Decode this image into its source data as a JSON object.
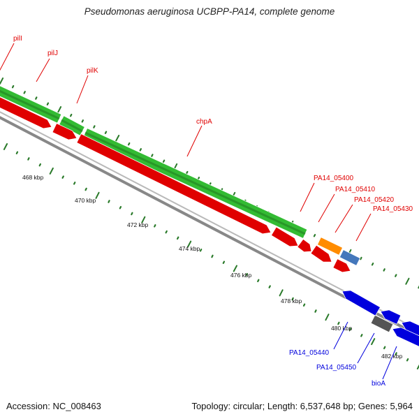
{
  "title": "Pseudomonas aeruginosa UCBPP-PA14, complete genome",
  "footer": {
    "accession": "Accession: NC_008463",
    "summary": "Topology: circular; Length: 6,537,648 bp; Genes: 5,964"
  },
  "colors": {
    "top_gene": "#e00000",
    "bottom_gene": "#0000dd",
    "cds_fill": "#33bb33",
    "backbone": "#888888",
    "tick": "#2a7a2a",
    "tick_label": "#111111"
  },
  "ticks": [
    "468 kbp",
    "470 kbp",
    "472 kbp",
    "474 kbp",
    "476 kbp",
    "478 kbp",
    "480 kbp",
    "482 kbp"
  ],
  "top_genes": [
    "pilI",
    "pilJ",
    "pilK",
    "chpA",
    "PA14_05400",
    "PA14_05410",
    "PA14_05420",
    "PA14_05430"
  ],
  "bottom_genes": [
    "PA14_05440",
    "PA14_05450",
    "bioA"
  ]
}
